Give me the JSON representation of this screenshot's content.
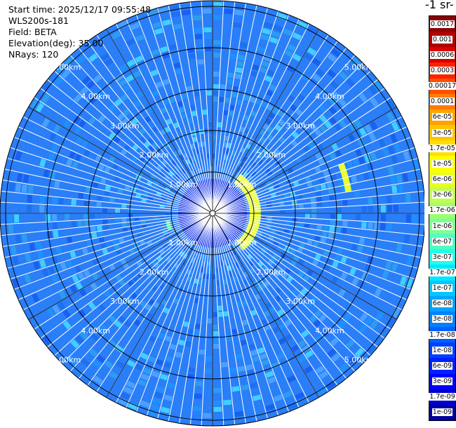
{
  "header": {
    "start_time": "Start time: 2025/12/17 09:55:48",
    "instrument": "WLS200s-181",
    "field": "Field: BETA",
    "elevation": "Elevation(deg): 35.00",
    "nrays": "NRays: 120"
  },
  "colorbar": {
    "title": "-1 sr-",
    "labels": [
      "0.0017",
      "0.001",
      "0.0006",
      "0.0003",
      "0.00017",
      "0.0001",
      "6e-05",
      "3e-05",
      "1.7e-05",
      "1e-05",
      "6e-06",
      "3e-06",
      "1.7e-06",
      "1e-06",
      "6e-07",
      "3e-07",
      "1.7e-07",
      "1e-07",
      "6e-08",
      "3e-08",
      "1.7e-08",
      "1e-08",
      "6e-09",
      "3e-09",
      "1.7e-09",
      "1e-09"
    ],
    "colors": [
      "#8b0000",
      "#b00000",
      "#d80000",
      "#ff2000",
      "#ff5000",
      "#ff7c00",
      "#ffa200",
      "#ffc400",
      "#ffe000",
      "#ffff00",
      "#e8ff20",
      "#c0ff50",
      "#a0ff70",
      "#80ff90",
      "#50ffc0",
      "#20ffe8",
      "#00e8ff",
      "#00c8ff",
      "#00a4ff",
      "#0080ff",
      "#0060ff",
      "#0040ff",
      "#0020ff",
      "#0000ff",
      "#0000d0",
      "#0000a0"
    ]
  },
  "chart_data": {
    "type": "ppi-polar",
    "field": "BETA",
    "nrays": 120,
    "elevation_deg": 35.0,
    "range_rings": [
      {
        "km": 1,
        "label": "1.00km"
      },
      {
        "km": 2,
        "label": "2.00km"
      },
      {
        "km": 3,
        "label": "3.00km"
      },
      {
        "km": 4,
        "label": "4.00km"
      },
      {
        "km": 5,
        "label": "5.00km"
      }
    ],
    "max_range_km": 7.0,
    "ring_label_azimuths_deg": [
      315,
      45,
      225,
      135
    ],
    "spoke_azimuths_deg": [
      0,
      30,
      60,
      90,
      120,
      150,
      180,
      210,
      240,
      270,
      300,
      330
    ],
    "background_color": "#2a7ef8",
    "aerosol_band": {
      "azimuth_range_deg": [
        35,
        140
      ],
      "range_km": [
        0.9,
        1.1
      ],
      "color": "#e8ff30"
    },
    "far_features": [
      {
        "azimuth_deg": 335,
        "range_km": [
          6.6,
          6.9
        ],
        "color": "#50ffa0"
      },
      {
        "azimuth_deg": 75,
        "range_km": [
          3.25,
          3.4
        ],
        "color": "#e8ff30"
      },
      {
        "azimuth_deg": 255,
        "range_km": [
          1.05,
          1.15
        ],
        "color": "#50ffa0"
      }
    ],
    "near_center": {
      "range_km": [
        0,
        0.9
      ],
      "color": "#1030e8"
    }
  }
}
